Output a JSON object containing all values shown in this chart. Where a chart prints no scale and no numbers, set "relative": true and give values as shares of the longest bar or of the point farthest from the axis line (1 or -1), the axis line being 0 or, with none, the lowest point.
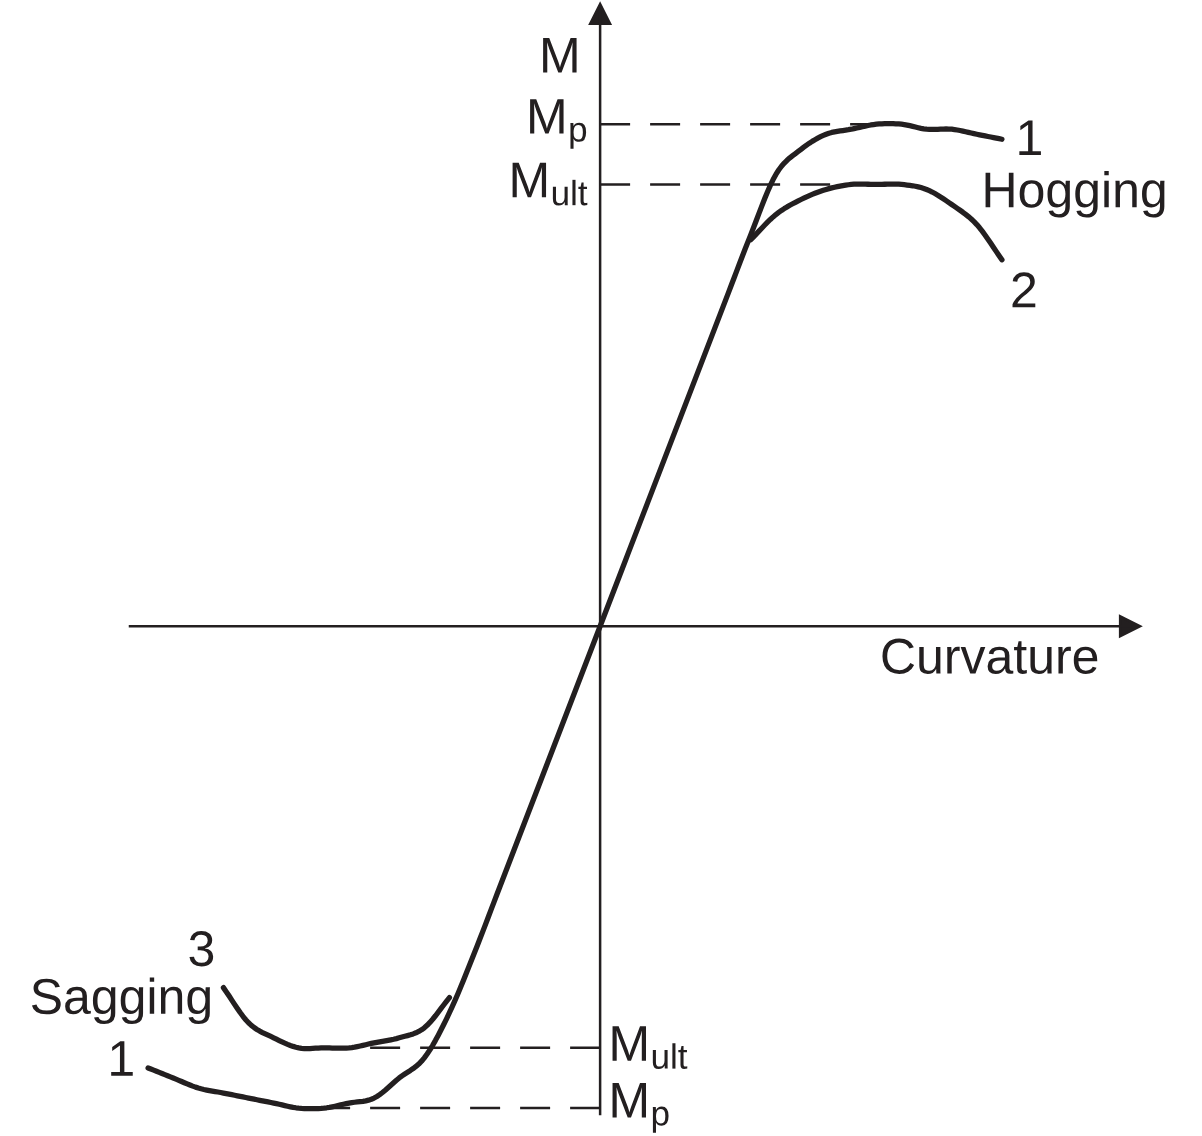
{
  "chart_data": {
    "type": "line",
    "relative": true,
    "xlabel": "Curvature",
    "ylabel": "M",
    "categories": [
      null,
      null,
      null,
      null,
      null,
      null,
      null,
      null,
      null,
      null,
      null,
      null,
      null,
      null,
      null,
      null,
      null,
      null,
      null,
      null,
      null,
      null,
      null,
      null,
      null,
      null,
      null,
      null,
      null,
      null,
      null,
      null,
      null,
      null,
      null
    ],
    "series": [
      {
        "name": "1",
        "color": "#231f20",
        "values": [
          -0.88,
          -0.9,
          -0.92,
          -0.93,
          -0.94,
          -0.95,
          -0.96,
          -0.96,
          -0.95,
          -0.94,
          -0.9,
          -0.86,
          -0.77,
          -0.65,
          -0.52,
          -0.39,
          -0.26,
          -0.13,
          0,
          0.13,
          0.26,
          0.39,
          0.52,
          0.65,
          0.78,
          0.9,
          0.95,
          0.98,
          0.99,
          1.0,
          1.0,
          0.99,
          0.99,
          0.98,
          0.97
        ]
      },
      {
        "name": "2",
        "color": "#231f20",
        "values": [
          null,
          null,
          null,
          null,
          null,
          null,
          null,
          null,
          null,
          null,
          null,
          null,
          null,
          null,
          null,
          null,
          null,
          null,
          null,
          null,
          null,
          null,
          null,
          null,
          0.77,
          0.82,
          0.85,
          0.87,
          0.88,
          0.88,
          0.88,
          0.87,
          0.84,
          0.8,
          0.73
        ]
      },
      {
        "name": "3",
        "color": "#231f20",
        "values": [
          null,
          null,
          null,
          -0.72,
          -0.79,
          -0.82,
          -0.84,
          -0.84,
          -0.84,
          -0.83,
          -0.82,
          -0.8,
          -0.74,
          null,
          null,
          null,
          null,
          null,
          null,
          null,
          null,
          null,
          null,
          null,
          null,
          null,
          null,
          null,
          null,
          null,
          null,
          null,
          null,
          null,
          null
        ]
      }
    ],
    "ref_lines": [
      {
        "axis": "y",
        "value": 1.0,
        "label": "M$_{p}$",
        "color": "#231f20",
        "line_style": "dashed"
      },
      {
        "axis": "y",
        "value": 0.88,
        "label": "M$_{ult}$",
        "color": "#231f20",
        "line_style": "dashed"
      },
      {
        "axis": "y",
        "value": -0.84,
        "label": "M$_{ult}$",
        "color": "#231f20",
        "line_style": "dashed"
      },
      {
        "axis": "y",
        "value": -0.96,
        "label": "M$_{p}$",
        "color": "#231f20",
        "line_style": "dashed"
      }
    ],
    "annotations": [
      "Hogging",
      "Sagging"
    ]
  }
}
